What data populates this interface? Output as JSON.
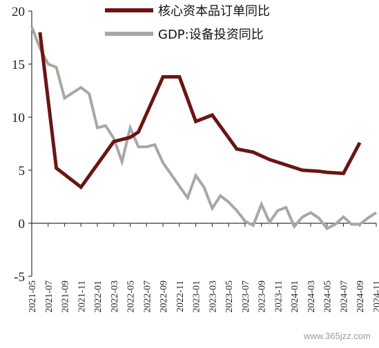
{
  "chart_data": {
    "type": "line",
    "ylim": [
      -5,
      20
    ],
    "yticks": [
      -5,
      0,
      5,
      10,
      15,
      20
    ],
    "x_tick_labels": [
      "2021-05",
      "2021-07",
      "2021-09",
      "2021-11",
      "2022-01",
      "2022-03",
      "2022-05",
      "2022-07",
      "2022-09",
      "2022-11",
      "2023-01",
      "2023-03",
      "2023-05",
      "2023-07",
      "2023-09",
      "2023-11",
      "2024-01",
      "2024-03",
      "2024-05",
      "2024-07",
      "2024-09",
      "2024-11"
    ],
    "legend_position": "top",
    "series": [
      {
        "name": "核心资本品订单同比",
        "color": "#6b1414",
        "x": [
          "2021-06",
          "2021-08",
          "2021-11",
          "2022-03",
          "2022-05",
          "2022-06",
          "2022-09",
          "2022-11",
          "2023-01",
          "2023-03",
          "2023-06",
          "2023-08",
          "2023-10",
          "2024-02",
          "2024-04",
          "2024-05",
          "2024-07",
          "2024-09"
        ],
        "values": [
          18.0,
          5.2,
          3.4,
          7.7,
          8.1,
          8.6,
          13.8,
          13.8,
          9.6,
          10.2,
          7.0,
          6.7,
          6.0,
          5.0,
          4.9,
          4.8,
          4.7,
          7.6
        ]
      },
      {
        "name": "GDP:设备投资同比",
        "color": "#a7a7a4",
        "x": [
          "2021-05",
          "2021-06",
          "2021-07",
          "2021-08",
          "2021-09",
          "2021-10",
          "2021-11",
          "2021-12",
          "2022-01",
          "2022-02",
          "2022-03",
          "2022-04",
          "2022-05",
          "2022-06",
          "2022-07",
          "2022-08",
          "2022-09",
          "2022-10",
          "2022-11",
          "2022-12",
          "2023-01",
          "2023-02",
          "2023-03",
          "2023-04",
          "2023-05",
          "2023-06",
          "2023-07",
          "2023-08",
          "2023-09",
          "2023-10",
          "2023-11",
          "2023-12",
          "2024-01",
          "2024-02",
          "2024-03",
          "2024-04",
          "2024-05",
          "2024-06",
          "2024-07",
          "2024-08",
          "2024-09",
          "2024-10",
          "2024-11"
        ],
        "values": [
          18.5,
          16.5,
          15.0,
          14.7,
          11.8,
          12.3,
          12.8,
          12.2,
          9.0,
          9.2,
          8.0,
          5.8,
          9.0,
          7.2,
          7.2,
          7.4,
          5.7,
          4.6,
          3.5,
          2.4,
          4.5,
          3.4,
          1.4,
          2.6,
          2.0,
          1.2,
          0.2,
          -0.2,
          1.8,
          0.1,
          1.2,
          1.5,
          -0.3,
          0.6,
          1.0,
          0.5,
          -0.5,
          -0.1,
          0.6,
          -0.1,
          -0.1,
          0.5,
          1.0
        ]
      }
    ]
  },
  "watermark": {
    "text": "www.365jzz.com"
  }
}
